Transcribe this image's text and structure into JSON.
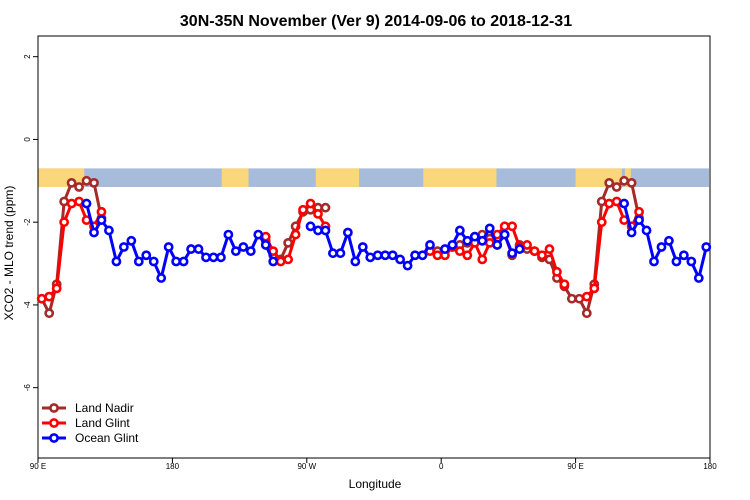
{
  "chart_data": {
    "type": "line",
    "title": "30N-35N November (Ver 9)   2014-09-06 to 2018-12-31",
    "xlabel": "Longitude",
    "ylabel": "XCO2 - MLO trend (ppm)",
    "xlim": [
      90,
      540
    ],
    "ylim": [
      -7.7,
      2.5
    ],
    "xticks": [
      {
        "value": 90,
        "label": "90 E"
      },
      {
        "value": 180,
        "label": "180"
      },
      {
        "value": 270,
        "label": "90 W"
      },
      {
        "value": 360,
        "label": "0"
      },
      {
        "value": 450,
        "label": "90 E"
      },
      {
        "value": 540,
        "label": "180"
      }
    ],
    "yticks": [
      {
        "value": 2,
        "label": "2"
      },
      {
        "value": 0,
        "label": "0"
      },
      {
        "value": -2,
        "label": "-2"
      },
      {
        "value": -4,
        "label": "-4"
      },
      {
        "value": -6,
        "label": "-6"
      }
    ],
    "land_mask": {
      "y_range": [
        -1.15,
        -0.7
      ],
      "ocean_color": "#a7bbdb",
      "land_color": "#f9d77a",
      "land_spans": [
        [
          90,
          121
        ],
        [
          213,
          231
        ],
        [
          276,
          305
        ],
        [
          348,
          397
        ],
        [
          450,
          481
        ],
        [
          483,
          487
        ]
      ]
    },
    "legend_position": "bottom-left",
    "series": [
      {
        "name": "Land Nadir",
        "color": "#a52a2a",
        "segments": [
          [
            [
              92.5,
              -3.85
            ],
            [
              97.5,
              -4.2
            ],
            [
              102.5,
              -3.5
            ],
            [
              107.5,
              -1.5
            ],
            [
              112.5,
              -1.05
            ],
            [
              117.5,
              -1.15
            ],
            [
              122.5,
              -1.0
            ],
            [
              127.5,
              -1.05
            ],
            [
              132.5,
              -1.9
            ]
          ],
          [
            [
              242.5,
              -2.45
            ],
            [
              247.5,
              -2.8
            ],
            [
              252.5,
              -2.9
            ],
            [
              257.5,
              -2.5
            ],
            [
              262.5,
              -2.1
            ],
            [
              267.5,
              -1.75
            ],
            [
              272.5,
              -1.7
            ],
            [
              277.5,
              -1.65
            ],
            [
              282.5,
              -1.65
            ]
          ],
          [
            [
              352.5,
              -2.65
            ],
            [
              357.5,
              -2.7
            ],
            [
              362.5,
              -2.7
            ],
            [
              367.5,
              -2.6
            ],
            [
              372.5,
              -2.55
            ],
            [
              377.5,
              -2.5
            ],
            [
              382.5,
              -2.35
            ],
            [
              387.5,
              -2.3
            ],
            [
              392.5,
              -2.4
            ],
            [
              397.5,
              -2.55
            ],
            [
              402.5,
              -2.3
            ],
            [
              407.5,
              -2.8
            ],
            [
              412.5,
              -2.55
            ],
            [
              417.5,
              -2.65
            ],
            [
              422.5,
              -2.7
            ],
            [
              427.5,
              -2.85
            ],
            [
              432.5,
              -2.9
            ],
            [
              437.5,
              -3.35
            ],
            [
              442.5,
              -3.55
            ],
            [
              447.5,
              -3.85
            ],
            [
              452.5,
              -3.85
            ],
            [
              457.5,
              -4.2
            ],
            [
              462.5,
              -3.5
            ],
            [
              467.5,
              -1.5
            ],
            [
              472.5,
              -1.05
            ],
            [
              477.5,
              -1.15
            ],
            [
              482.5,
              -1.0
            ],
            [
              487.5,
              -1.05
            ],
            [
              492.5,
              -1.9
            ]
          ]
        ]
      },
      {
        "name": "Land Glint",
        "color": "#ff0000",
        "segments": [
          [
            [
              92.5,
              -3.85
            ],
            [
              97.5,
              -3.8
            ],
            [
              102.5,
              -3.6
            ],
            [
              107.5,
              -2.0
            ],
            [
              112.5,
              -1.55
            ],
            [
              117.5,
              -1.5
            ],
            [
              122.5,
              -1.95
            ]
          ],
          [
            [
              127.5,
              -2.1
            ],
            [
              132.5,
              -1.75
            ]
          ],
          [
            [
              242.5,
              -2.35
            ],
            [
              247.5,
              -2.7
            ],
            [
              252.5,
              -2.95
            ],
            [
              257.5,
              -2.9
            ],
            [
              262.5,
              -2.3
            ],
            [
              267.5,
              -1.7
            ],
            [
              272.5,
              -1.55
            ],
            [
              277.5,
              -1.8
            ],
            [
              282.5,
              -2.1
            ]
          ],
          [
            [
              352.5,
              -2.7
            ],
            [
              357.5,
              -2.8
            ],
            [
              362.5,
              -2.8
            ],
            [
              367.5,
              -2.6
            ],
            [
              372.5,
              -2.7
            ],
            [
              377.5,
              -2.8
            ],
            [
              382.5,
              -2.5
            ],
            [
              387.5,
              -2.9
            ],
            [
              392.5,
              -2.5
            ],
            [
              397.5,
              -2.3
            ],
            [
              402.5,
              -2.1
            ],
            [
              407.5,
              -2.1
            ],
            [
              412.5,
              -2.6
            ],
            [
              417.5,
              -2.55
            ],
            [
              422.5,
              -2.7
            ],
            [
              427.5,
              -2.8
            ],
            [
              432.5,
              -2.65
            ],
            [
              437.5,
              -3.2
            ],
            [
              442.5,
              -3.5
            ]
          ],
          [
            [
              457.5,
              -3.8
            ],
            [
              462.5,
              -3.6
            ],
            [
              467.5,
              -2.0
            ],
            [
              472.5,
              -1.55
            ],
            [
              477.5,
              -1.5
            ],
            [
              482.5,
              -1.95
            ]
          ],
          [
            [
              487.5,
              -2.1
            ],
            [
              492.5,
              -1.75
            ]
          ]
        ]
      },
      {
        "name": "Ocean Glint",
        "color": "#0000ff",
        "segments": [
          [
            [
              122.5,
              -1.55
            ],
            [
              127.5,
              -2.25
            ],
            [
              132.5,
              -1.95
            ],
            [
              137.5,
              -2.2
            ],
            [
              142.5,
              -2.95
            ],
            [
              147.5,
              -2.6
            ],
            [
              152.5,
              -2.45
            ],
            [
              157.5,
              -2.95
            ],
            [
              162.5,
              -2.8
            ],
            [
              167.5,
              -2.95
            ],
            [
              172.5,
              -3.35
            ],
            [
              177.5,
              -2.6
            ],
            [
              182.5,
              -2.95
            ],
            [
              187.5,
              -2.95
            ],
            [
              192.5,
              -2.65
            ],
            [
              197.5,
              -2.65
            ],
            [
              202.5,
              -2.85
            ],
            [
              207.5,
              -2.85
            ],
            [
              212.5,
              -2.85
            ],
            [
              217.5,
              -2.3
            ],
            [
              222.5,
              -2.7
            ],
            [
              227.5,
              -2.6
            ],
            [
              232.5,
              -2.7
            ],
            [
              237.5,
              -2.3
            ],
            [
              242.5,
              -2.55
            ],
            [
              247.5,
              -2.95
            ]
          ],
          [
            [
              272.5,
              -2.1
            ],
            [
              277.5,
              -2.2
            ],
            [
              282.5,
              -2.2
            ],
            [
              287.5,
              -2.75
            ],
            [
              292.5,
              -2.75
            ],
            [
              297.5,
              -2.25
            ],
            [
              302.5,
              -2.95
            ],
            [
              307.5,
              -2.6
            ],
            [
              312.5,
              -2.85
            ],
            [
              317.5,
              -2.8
            ],
            [
              322.5,
              -2.8
            ],
            [
              327.5,
              -2.8
            ],
            [
              332.5,
              -2.9
            ],
            [
              337.5,
              -3.05
            ],
            [
              342.5,
              -2.8
            ],
            [
              347.5,
              -2.8
            ],
            [
              352.5,
              -2.55
            ]
          ],
          [
            [
              362.5,
              -2.65
            ],
            [
              367.5,
              -2.55
            ],
            [
              372.5,
              -2.2
            ],
            [
              377.5,
              -2.45
            ],
            [
              382.5,
              -2.35
            ],
            [
              387.5,
              -2.45
            ],
            [
              392.5,
              -2.15
            ],
            [
              397.5,
              -2.55
            ],
            [
              402.5,
              -2.3
            ],
            [
              407.5,
              -2.75
            ],
            [
              412.5,
              -2.65
            ]
          ],
          [
            [
              482.5,
              -1.55
            ],
            [
              487.5,
              -2.25
            ],
            [
              492.5,
              -1.95
            ],
            [
              497.5,
              -2.2
            ],
            [
              502.5,
              -2.95
            ],
            [
              507.5,
              -2.6
            ],
            [
              512.5,
              -2.45
            ],
            [
              517.5,
              -2.95
            ],
            [
              522.5,
              -2.8
            ],
            [
              527.5,
              -2.95
            ],
            [
              532.5,
              -3.35
            ],
            [
              537.5,
              -2.6
            ]
          ]
        ]
      }
    ]
  }
}
